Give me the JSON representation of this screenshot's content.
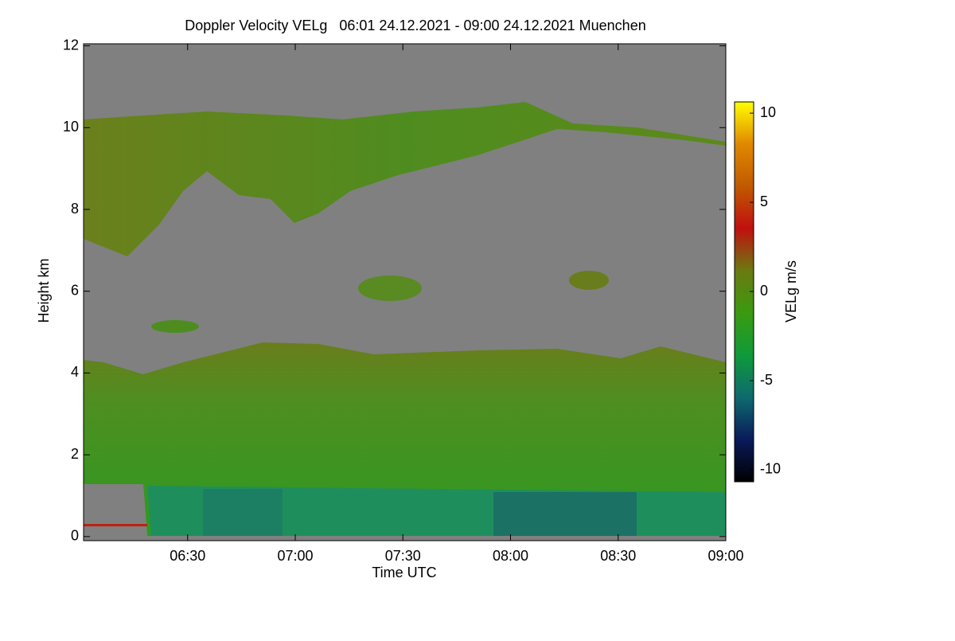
{
  "chart_data": {
    "type": "heatmap",
    "title": "Doppler Velocity VELg   06:01 24.12.2021 - 09:00 24.12.2021 Muenchen",
    "x_label": "Time UTC",
    "y_label": "Height km",
    "colorbar_label": "VELg m/s",
    "xlim": [
      361,
      540
    ],
    "xticks": [
      {
        "value": 390,
        "label": "06:30"
      },
      {
        "value": 420,
        "label": "07:00"
      },
      {
        "value": 450,
        "label": "07:30"
      },
      {
        "value": 480,
        "label": "08:00"
      },
      {
        "value": 510,
        "label": "08:30"
      },
      {
        "value": 540,
        "label": "09:00"
      }
    ],
    "ylim": [
      -0.1,
      12.05
    ],
    "yticks": [
      0,
      2,
      4,
      6,
      8,
      10,
      12
    ],
    "clim": [
      -10.67,
      10.63
    ],
    "cticks": [
      -10,
      -5,
      0,
      5,
      10
    ],
    "colormap": [
      "#000000",
      "#0a1a5a",
      "#0e6a6e",
      "#0f9a3a",
      "#3a9a10",
      "#6a7a10",
      "#c01010",
      "#c05a00",
      "#e08800",
      "#ffff00"
    ]
  }
}
